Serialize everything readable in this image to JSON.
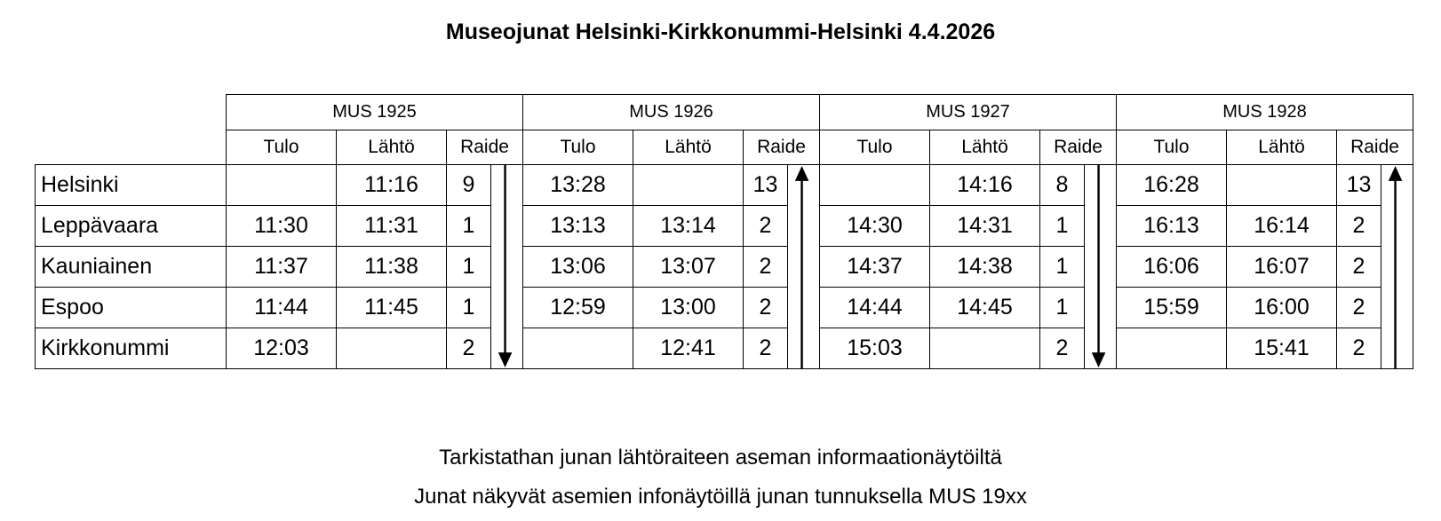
{
  "title": "Museojunat Helsinki-Kirkkonummi-Helsinki 4.4.2026",
  "column_headers": {
    "arrival": "Tulo",
    "departure": "Lähtö",
    "track": "Raide"
  },
  "stations": [
    "Helsinki",
    "Leppävaara",
    "Kauniainen",
    "Espoo",
    "Kirkkonummi"
  ],
  "trains": [
    {
      "name": "MUS 1925",
      "direction": "down",
      "rows": [
        [
          "",
          "11:16",
          "9"
        ],
        [
          "11:30",
          "11:31",
          "1"
        ],
        [
          "11:37",
          "11:38",
          "1"
        ],
        [
          "11:44",
          "11:45",
          "1"
        ],
        [
          "12:03",
          "",
          "2"
        ]
      ]
    },
    {
      "name": "MUS 1926",
      "direction": "up",
      "rows": [
        [
          "13:28",
          "",
          "13"
        ],
        [
          "13:13",
          "13:14",
          "2"
        ],
        [
          "13:06",
          "13:07",
          "2"
        ],
        [
          "12:59",
          "13:00",
          "2"
        ],
        [
          "",
          "12:41",
          "2"
        ]
      ]
    },
    {
      "name": "MUS 1927",
      "direction": "down",
      "rows": [
        [
          "",
          "14:16",
          "8"
        ],
        [
          "14:30",
          "14:31",
          "1"
        ],
        [
          "14:37",
          "14:38",
          "1"
        ],
        [
          "14:44",
          "14:45",
          "1"
        ],
        [
          "15:03",
          "",
          "2"
        ]
      ]
    },
    {
      "name": "MUS 1928",
      "direction": "up",
      "rows": [
        [
          "16:28",
          "",
          "13"
        ],
        [
          "16:13",
          "16:14",
          "2"
        ],
        [
          "16:06",
          "16:07",
          "2"
        ],
        [
          "15:59",
          "16:00",
          "2"
        ],
        [
          "",
          "15:41",
          "2"
        ]
      ]
    }
  ],
  "footer": [
    "Tarkistathan junan lähtöraiteen aseman informaationäytöiltä",
    "Junat näkyvät asemien infonäytöillä junan tunnuksella MUS 19xx"
  ]
}
